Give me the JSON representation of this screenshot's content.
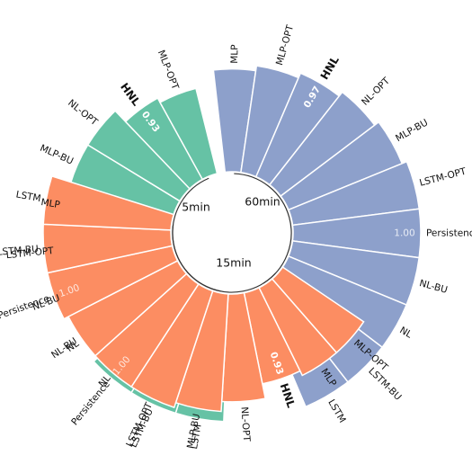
{
  "chart_data": {
    "type": "bar",
    "layout": "circular-barplot",
    "ylim": [
      0,
      1
    ],
    "groups": [
      {
        "name": "5min",
        "color": "#66c2a5",
        "categories": [
          "LSTM",
          "LSTM-BU",
          "Persistence",
          "NL",
          "NL-BU",
          "LSTM-OPT",
          "MLP",
          "MLP-BU",
          "NL-OPT",
          "HNL",
          "MLP-OPT"
        ],
        "values": [
          1.0,
          1.0,
          1.0,
          0.99,
          0.98,
          0.97,
          0.96,
          0.96,
          0.96,
          0.93,
          0.92
        ],
        "value_labels": [
          {
            "category": "Persistence",
            "text": "1.00",
            "style": "light"
          },
          {
            "category": "HNL",
            "text": "0.93",
            "style": "bold"
          }
        ],
        "highlight": "HNL"
      },
      {
        "name": "60min",
        "color": "#8da0cb",
        "categories": [
          "MLP",
          "MLP-OPT",
          "HNL",
          "NL-OPT",
          "MLP-BU",
          "LSTM-OPT",
          "Persistence",
          "NL-BU",
          "NL",
          "LSTM-BU",
          "LSTM"
        ],
        "values": [
          0.95,
          0.96,
          0.97,
          0.98,
          0.99,
          1.0,
          1.0,
          1.0,
          1.0,
          1.0,
          1.0
        ],
        "value_labels": [
          {
            "category": "HNL",
            "text": "0.97",
            "style": "bold"
          },
          {
            "category": "Persistence",
            "text": "1.00",
            "style": "light"
          }
        ],
        "highlight": "HNL"
      },
      {
        "name": "15min",
        "color": "#fc8d62",
        "categories": [
          "MLP-OPT",
          "MLP",
          "HNL",
          "NL-OPT",
          "MLP-BU",
          "LSTM-OPT",
          "NL",
          "NL-BU",
          "Persistence",
          "LSTM-BU",
          "LSTM"
        ],
        "values": [
          0.94,
          0.94,
          0.93,
          0.96,
          0.98,
          0.99,
          0.99,
          0.99,
          1.0,
          1.0,
          1.0
        ],
        "value_labels": [
          {
            "category": "HNL",
            "text": "0.93",
            "style": "bold"
          },
          {
            "category": "Persistence",
            "text": "1.00",
            "style": "light"
          }
        ],
        "highlight": "HNL"
      }
    ]
  }
}
